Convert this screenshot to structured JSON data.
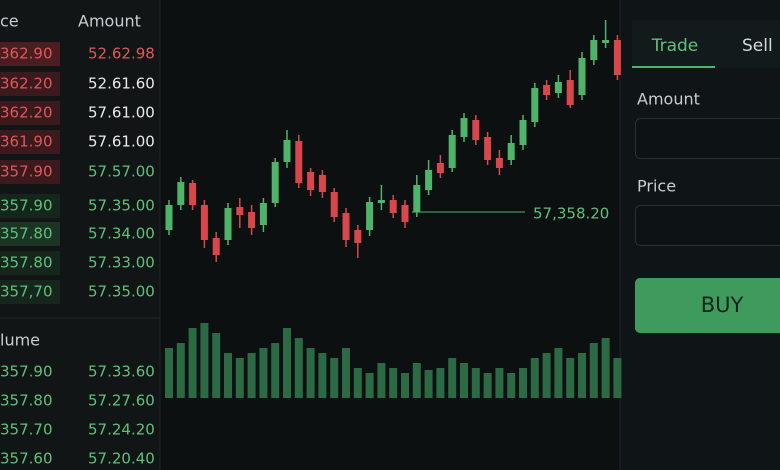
{
  "order_book": {
    "headers": [
      "ce",
      "Amount"
    ],
    "rows": [
      {
        "price": "362.90",
        "amount": "52.62.98",
        "price_color": "#e0565b",
        "amount_color": "#e0565b",
        "highlight": "#4a1d20"
      },
      {
        "price": "362.20",
        "amount": "52.61.60",
        "price_color": "#e0565b",
        "amount_color": "#e8eaeb",
        "highlight": "#3a1a1c"
      },
      {
        "price": "362.20",
        "amount": "57.61.00",
        "price_color": "#e0565b",
        "amount_color": "#e8eaeb",
        "highlight": "#3a1a1c"
      },
      {
        "price": "361.90",
        "amount": "57.61.00",
        "price_color": "#e0565b",
        "amount_color": "#e8eaeb",
        "highlight": "#3a1a1c"
      },
      {
        "price": "357.90",
        "amount": "57.57.00",
        "price_color": "#e0565b",
        "amount_color": "#5cc27a",
        "highlight": "#3a1a1c"
      },
      {
        "price": "357.90",
        "amount": "57.35.00",
        "price_color": "#5cc27a",
        "amount_color": "#5cc27a",
        "highlight": "#16261c"
      },
      {
        "price": "357.80",
        "amount": "57.34.00",
        "price_color": "#5cc27a",
        "amount_color": "#5cc27a",
        "highlight": "#1b3424"
      },
      {
        "price": "357.80",
        "amount": "57.33.00",
        "price_color": "#5cc27a",
        "amount_color": "#5cc27a",
        "highlight": "#16261c"
      },
      {
        "price": "357,70",
        "amount": "57.35.00",
        "price_color": "#5cc27a",
        "amount_color": "#5cc27a",
        "highlight": "#16261c"
      }
    ]
  },
  "volume_book": {
    "title": "lume",
    "rows": [
      {
        "price": "357.90",
        "amount": "57.33.60"
      },
      {
        "price": "357.80",
        "amount": "57.27.60"
      },
      {
        "price": "357.70",
        "amount": "57.24.20"
      },
      {
        "price": "357.60",
        "amount": "57.20.40"
      }
    ]
  },
  "chart": {
    "ylim": [
      0,
      245
    ],
    "up_color": "#4fb36a",
    "down_color": "#d9474d",
    "candles": [
      [
        35,
        60,
        30,
        65
      ],
      [
        60,
        83,
        55,
        88
      ],
      [
        82,
        60,
        55,
        85
      ],
      [
        60,
        25,
        17,
        65
      ],
      [
        27,
        10,
        3,
        33
      ],
      [
        25,
        57,
        20,
        62
      ],
      [
        58,
        50,
        37,
        67
      ],
      [
        53,
        37,
        30,
        60
      ],
      [
        40,
        62,
        33,
        67
      ],
      [
        62,
        103,
        58,
        107
      ],
      [
        103,
        125,
        97,
        135
      ],
      [
        124,
        82,
        77,
        130
      ],
      [
        93,
        75,
        69,
        97
      ],
      [
        90,
        73,
        67,
        95
      ],
      [
        73,
        48,
        43,
        77
      ],
      [
        52,
        25,
        18,
        57
      ],
      [
        35,
        22,
        7,
        40
      ],
      [
        35,
        63,
        29,
        68
      ],
      [
        62,
        65,
        55,
        80
      ],
      [
        65,
        52,
        47,
        70
      ],
      [
        60,
        43,
        37,
        65
      ],
      [
        53,
        80,
        48,
        90
      ],
      [
        75,
        95,
        70,
        105
      ],
      [
        102,
        92,
        87,
        110
      ],
      [
        97,
        130,
        93,
        135
      ],
      [
        128,
        147,
        123,
        152
      ],
      [
        145,
        125,
        120,
        150
      ],
      [
        128,
        105,
        100,
        133
      ],
      [
        107,
        97,
        90,
        115
      ],
      [
        105,
        122,
        100,
        130
      ],
      [
        120,
        145,
        115,
        150
      ],
      [
        143,
        177,
        138,
        182
      ],
      [
        180,
        170,
        165,
        185
      ],
      [
        172,
        183,
        167,
        190
      ],
      [
        185,
        160,
        157,
        195
      ],
      [
        170,
        207,
        165,
        213
      ],
      [
        205,
        225,
        200,
        230
      ],
      [
        222,
        225,
        217,
        245
      ],
      [
        225,
        190,
        185,
        230
      ]
    ],
    "volume_ylim": [
      0,
      100
    ],
    "volume_color": "#2b6a44",
    "volumes": [
      50,
      55,
      70,
      75,
      65,
      45,
      40,
      45,
      50,
      55,
      70,
      60,
      50,
      45,
      40,
      50,
      30,
      25,
      35,
      30,
      25,
      35,
      28,
      30,
      40,
      35,
      30,
      25,
      30,
      25,
      30,
      40,
      45,
      50,
      40,
      45,
      55,
      60,
      40
    ],
    "price_line": {
      "value": 53,
      "label": "57,358.20"
    }
  },
  "trade_panel": {
    "tabs": [
      "Trade",
      "Sell"
    ],
    "amount_label": "Amount",
    "price_label": "Price",
    "button": "BUY"
  }
}
